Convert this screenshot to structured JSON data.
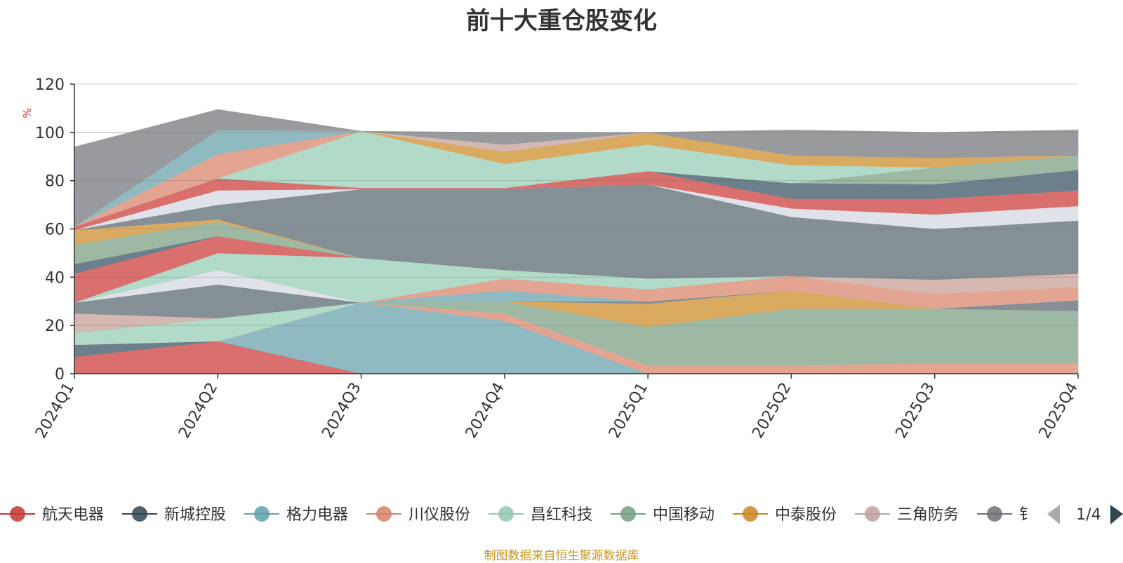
{
  "chart_data": {
    "type": "area",
    "title": "前十大重仓股变化",
    "y_unit": "%",
    "ylim": [
      0,
      120
    ],
    "y_ticks": [
      0,
      20,
      40,
      60,
      80,
      100,
      120
    ],
    "grid": true,
    "legend_position": "bottom",
    "categories": [
      "2024Q1",
      "2024Q2",
      "2024Q3",
      "2024Q4",
      "2025Q1",
      "2025Q2",
      "2025Q3",
      "2025Q4"
    ],
    "layers": [
      {
        "name": "航天电器",
        "color": "#d9706e",
        "values": [
          7,
          13.5,
          0,
          0,
          0,
          0,
          0,
          0
        ]
      },
      {
        "name": "",
        "color": "#6b7f8c",
        "values": [
          5,
          0,
          0,
          0,
          0,
          0,
          0,
          0
        ]
      },
      {
        "name": "格力电器",
        "color": "#8fbac1",
        "values": [
          0,
          0,
          29.5,
          22,
          0,
          0,
          0,
          0
        ]
      },
      {
        "name": "川仪股份",
        "color": "#e3a592",
        "values": [
          0,
          0,
          0,
          3,
          3.5,
          3.5,
          4.5,
          4.5
        ]
      },
      {
        "name": "昌红科技",
        "color": "#b1dac9",
        "values": [
          5,
          9.5,
          0,
          0,
          0,
          0,
          0,
          0
        ]
      },
      {
        "name": "中国移动",
        "color": "#9db9a3",
        "values": [
          0,
          0,
          0,
          5,
          16,
          23.5,
          22.5,
          21.5
        ]
      },
      {
        "name": "中泰股份",
        "color": "#dbaa61",
        "values": [
          0,
          0,
          0,
          0,
          9.5,
          7.5,
          0,
          0
        ]
      },
      {
        "name": "",
        "color": "#888f94",
        "values": [
          0,
          0,
          0,
          0,
          1,
          0,
          0,
          4.5
        ]
      },
      {
        "name": "三角防务",
        "color": "#d4b8b1",
        "values": [
          8,
          0,
          0,
          0,
          0,
          0,
          0,
          0
        ]
      },
      {
        "name": "",
        "color": "#848f96",
        "values": [
          4.5,
          14,
          0,
          0,
          0,
          0,
          0,
          0
        ]
      },
      {
        "name": "",
        "color": "#dfe2e8",
        "values": [
          0,
          6,
          0,
          0,
          0,
          0,
          0,
          0
        ]
      },
      {
        "name": "",
        "color": "#8fbac1",
        "values": [
          0,
          0,
          0,
          4.5,
          0,
          0,
          0,
          0
        ]
      },
      {
        "name": "",
        "color": "#e3a592",
        "values": [
          0,
          0,
          0,
          5,
          5,
          6,
          6,
          5.5
        ]
      },
      {
        "name": "",
        "color": "#d4b8b1",
        "values": [
          0,
          0,
          0,
          0,
          0,
          0,
          6,
          5.5
        ]
      },
      {
        "name": "",
        "color": "#b1dac9",
        "values": [
          0,
          7,
          18.5,
          3.5,
          4.5,
          0,
          0,
          0
        ]
      },
      {
        "name": "",
        "color": "#d9706e",
        "values": [
          12,
          7,
          0,
          0,
          0,
          0,
          0,
          0
        ]
      },
      {
        "name": "",
        "color": "#6b7f8c",
        "values": [
          4,
          0,
          0,
          0,
          0,
          0,
          0,
          0
        ]
      },
      {
        "name": "",
        "color": "#9db9a3",
        "values": [
          8,
          6,
          0,
          0,
          0,
          0,
          0,
          0
        ]
      },
      {
        "name": "",
        "color": "#dbaa61",
        "values": [
          6,
          1,
          0,
          0,
          0,
          0,
          0,
          0
        ]
      },
      {
        "name": "",
        "color": "#848f96",
        "values": [
          0,
          6,
          28.5,
          33.5,
          39,
          24.5,
          21,
          22
        ]
      },
      {
        "name": "",
        "color": "#dfe2e8",
        "values": [
          0,
          6,
          0,
          0,
          0,
          3.5,
          6,
          6
        ]
      },
      {
        "name": "",
        "color": "#d9706e",
        "values": [
          1.5,
          5,
          0.5,
          0.5,
          5.5,
          4,
          6.5,
          6.5
        ]
      },
      {
        "name": "",
        "color": "#6b7f8c",
        "values": [
          0,
          0,
          0,
          0,
          0,
          6.5,
          6,
          8.5
        ]
      },
      {
        "name": "",
        "color": "#9db9a3",
        "values": [
          0,
          0,
          0,
          0,
          0,
          0,
          7,
          6
        ]
      },
      {
        "name": "",
        "color": "#b1dac9",
        "values": [
          0,
          0,
          23.5,
          10,
          11,
          7.5,
          0,
          0
        ]
      },
      {
        "name": "",
        "color": "#dbaa61",
        "values": [
          0,
          0,
          0,
          5,
          5,
          4,
          4,
          0
        ]
      },
      {
        "name": "",
        "color": "#d4b8b1",
        "values": [
          0,
          0,
          0,
          3,
          0,
          0,
          0,
          0
        ]
      },
      {
        "name": "",
        "color": "#e3a592",
        "values": [
          0,
          10,
          0,
          0,
          0,
          0,
          0,
          0
        ]
      },
      {
        "name": "",
        "color": "#8fbac1",
        "values": [
          0,
          10,
          0,
          0,
          0,
          0,
          0,
          0
        ]
      },
      {
        "name": "",
        "color": "#999a9e",
        "values": [
          33,
          8.5,
          0,
          5,
          0,
          10.5,
          10.5,
          10.5
        ]
      }
    ],
    "legend": [
      {
        "name": "航天电器",
        "color": "#c23531"
      },
      {
        "name": "新城控股",
        "color": "#2f4554"
      },
      {
        "name": "格力电器",
        "color": "#61a0a8"
      },
      {
        "name": "川仪股份",
        "color": "#d48265"
      },
      {
        "name": "昌红科技",
        "color": "#91c7ae"
      },
      {
        "name": "中国移动",
        "color": "#749f83"
      },
      {
        "name": "中泰股份",
        "color": "#ca8622"
      },
      {
        "name": "三角防务",
        "color": "#bda29a"
      },
      {
        "name": "钅",
        "color": "#6e7074"
      }
    ],
    "legend_page": "1/4"
  },
  "footer": {
    "source": "制图数据来自恒生聚源数据库"
  },
  "icons": {
    "prev": "triangle-left-icon",
    "next": "triangle-right-icon"
  }
}
